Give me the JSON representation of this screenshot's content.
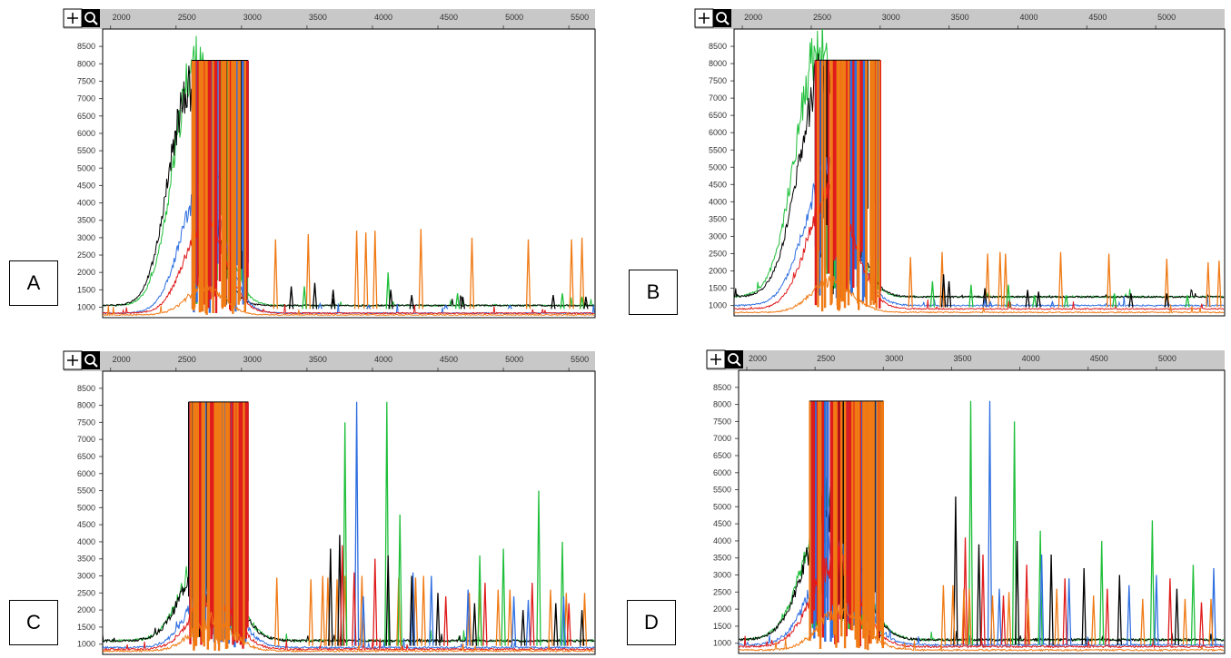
{
  "colors": {
    "black": "#000000",
    "green": "#1fbf3a",
    "blue": "#2f6fe0",
    "red": "#e01b1b",
    "orange": "#f07a14",
    "ruler_bg": "#c8c8c8",
    "axis_text": "#333333"
  },
  "toolbar": {
    "zoom_in_icon": "plus-icon",
    "magnifier_icon": "magnifier-icon"
  },
  "chart_data": [
    {
      "type": "line",
      "panel_label": "A",
      "x_ticks": [
        2000,
        2500,
        3000,
        3500,
        4000,
        4500,
        5000,
        5500
      ],
      "xlim": [
        1940,
        5700
      ],
      "y_ticks": [
        1000,
        1500,
        2000,
        2500,
        3000,
        3500,
        4000,
        4500,
        5000,
        5500,
        6000,
        6500,
        7000,
        7500,
        8000,
        8500
      ],
      "ylim": [
        700,
        9000
      ],
      "series": [
        {
          "color": "green",
          "baseline": 1050,
          "hump": 7000,
          "hump_center": 2650,
          "hump_width": 230,
          "noise": 0.02,
          "seed": 11
        },
        {
          "color": "black",
          "baseline": 1050,
          "hump": 6200,
          "hump_center": 2600,
          "hump_width": 220,
          "noise": 0.02,
          "seed": 12
        },
        {
          "color": "blue",
          "baseline": 830,
          "hump": 3600,
          "hump_center": 2700,
          "hump_width": 230,
          "noise": 0.02,
          "seed": 13
        },
        {
          "color": "red",
          "baseline": 830,
          "hump": 2600,
          "hump_center": 2720,
          "hump_width": 220,
          "noise": 0.02,
          "seed": 14
        },
        {
          "color": "orange",
          "baseline": 780,
          "hump": 800,
          "hump_center": 2720,
          "hump_width": 200,
          "noise": 0.02,
          "seed": 15
        }
      ],
      "saturation_band": [
        2620,
        3050
      ],
      "saturation_level": 8100,
      "peaks": [
        {
          "color": "orange",
          "x": [
            3260,
            3510,
            3880,
            3950,
            4020,
            4370,
            4760,
            5190,
            5520,
            5600
          ],
          "y": [
            2950,
            3100,
            3200,
            3150,
            3200,
            3250,
            3000,
            2950,
            2950,
            3000
          ]
        },
        {
          "color": "green",
          "x": [
            3480,
            4120,
            4650,
            5450,
            5600
          ],
          "y": [
            1600,
            2000,
            1400,
            1400,
            1300
          ]
        },
        {
          "color": "black",
          "x": [
            3380,
            3560,
            3700,
            4140,
            4300,
            4690,
            5380,
            5630
          ],
          "y": [
            1600,
            1700,
            1500,
            1500,
            1350,
            1300,
            1350,
            1300
          ]
        },
        {
          "color": "blue",
          "x": [
            3600,
            3970,
            4560,
            5050
          ],
          "y": [
            1100,
            1050,
            1050,
            1050
          ]
        }
      ]
    },
    {
      "type": "line",
      "panel_label": "B",
      "x_ticks": [
        2000,
        2500,
        3000,
        3500,
        4000,
        4500,
        5000
      ],
      "xlim": [
        1940,
        5500
      ],
      "y_ticks": [
        1000,
        1500,
        2000,
        2500,
        3000,
        3500,
        4000,
        4500,
        5000,
        5500,
        6000,
        6500,
        7000,
        7500,
        8000,
        8500
      ],
      "ylim": [
        700,
        9000
      ],
      "series": [
        {
          "color": "green",
          "baseline": 1250,
          "hump": 7200,
          "hump_center": 2560,
          "hump_width": 240,
          "noise": 0.02,
          "seed": 21
        },
        {
          "color": "black",
          "baseline": 1250,
          "hump": 6400,
          "hump_center": 2580,
          "hump_width": 240,
          "noise": 0.02,
          "seed": 22
        },
        {
          "color": "blue",
          "baseline": 1000,
          "hump": 3900,
          "hump_center": 2620,
          "hump_width": 240,
          "noise": 0.02,
          "seed": 23
        },
        {
          "color": "red",
          "baseline": 900,
          "hump": 3400,
          "hump_center": 2640,
          "hump_width": 230,
          "noise": 0.02,
          "seed": 24
        },
        {
          "color": "orange",
          "baseline": 800,
          "hump": 900,
          "hump_center": 2650,
          "hump_width": 210,
          "noise": 0.02,
          "seed": 25
        }
      ],
      "saturation_band": [
        2530,
        3000
      ],
      "saturation_level": 8100,
      "peaks": [
        {
          "color": "orange",
          "x": [
            3220,
            3450,
            3780,
            3870,
            3910,
            4310,
            4660,
            5080,
            5380,
            5460
          ],
          "y": [
            2400,
            2550,
            2500,
            2550,
            2500,
            2550,
            2500,
            2350,
            2250,
            2300
          ]
        },
        {
          "color": "green",
          "x": [
            3380,
            3660,
            3930,
            4120,
            4350,
            4700,
            5230
          ],
          "y": [
            1700,
            1600,
            1600,
            1300,
            1300,
            1350,
            1300
          ]
        },
        {
          "color": "black",
          "x": [
            3460,
            3500,
            3760,
            4070,
            4150,
            4820,
            5080
          ],
          "y": [
            1900,
            1700,
            1500,
            1450,
            1400,
            1350,
            1350
          ]
        },
        {
          "color": "blue",
          "x": [
            3760,
            3800,
            4250
          ],
          "y": [
            1150,
            1100,
            1100
          ]
        }
      ]
    },
    {
      "type": "line",
      "panel_label": "C",
      "x_ticks": [
        2000,
        2500,
        3000,
        3500,
        4000,
        4500,
        5000,
        5500
      ],
      "xlim": [
        1940,
        5700
      ],
      "y_ticks": [
        1000,
        1500,
        2000,
        2500,
        3000,
        3500,
        4000,
        4500,
        5000,
        5500,
        6000,
        6500,
        7000,
        7500,
        8000,
        8500
      ],
      "ylim": [
        700,
        9000
      ],
      "series": [
        {
          "color": "green",
          "baseline": 1100,
          "hump": 3000,
          "hump_center": 2750,
          "hump_width": 250,
          "noise": 0.03,
          "seed": 31
        },
        {
          "color": "black",
          "baseline": 1100,
          "hump": 2800,
          "hump_center": 2750,
          "hump_width": 250,
          "noise": 0.03,
          "seed": 32
        },
        {
          "color": "blue",
          "baseline": 900,
          "hump": 2000,
          "hump_center": 2780,
          "hump_width": 240,
          "noise": 0.03,
          "seed": 33
        },
        {
          "color": "red",
          "baseline": 850,
          "hump": 1600,
          "hump_center": 2780,
          "hump_width": 230,
          "noise": 0.03,
          "seed": 34
        },
        {
          "color": "orange",
          "baseline": 800,
          "hump": 900,
          "hump_center": 2780,
          "hump_width": 220,
          "noise": 0.03,
          "seed": 35
        }
      ],
      "saturation_band": [
        2600,
        3050
      ],
      "saturation_level": 8100,
      "peaks": [
        {
          "color": "orange",
          "x": [
            3270,
            3530,
            3620,
            3660,
            3730,
            3790,
            3920,
            4200,
            4330,
            4390,
            4740,
            4820,
            4960,
            5050,
            5360,
            5480,
            5620
          ],
          "y": [
            2950,
            2900,
            3000,
            2950,
            2900,
            3000,
            3000,
            2950,
            2950,
            3000,
            2500,
            2600,
            2600,
            2600,
            2600,
            2500,
            2500
          ]
        },
        {
          "color": "green",
          "x": [
            3790,
            4110,
            4210,
            4820,
            5000,
            5270,
            5450
          ],
          "y": [
            7500,
            8100,
            4800,
            3600,
            3800,
            5500,
            4000
          ]
        },
        {
          "color": "blue",
          "x": [
            3880,
            3930,
            4310,
            4450,
            4730,
            5080,
            5190,
            5460
          ],
          "y": [
            8100,
            2400,
            3100,
            3000,
            2600,
            2400,
            2300,
            2400
          ]
        },
        {
          "color": "black",
          "x": [
            3680,
            3750,
            4120,
            4300,
            4500,
            4780,
            5150,
            5400,
            5600
          ],
          "y": [
            3800,
            4200,
            3600,
            3000,
            2500,
            2200,
            2000,
            2200,
            2000
          ]
        },
        {
          "color": "red",
          "x": [
            3770,
            3860,
            4020,
            4560,
            4860,
            5220,
            5500
          ],
          "y": [
            3900,
            3100,
            3500,
            2400,
            2800,
            2800,
            2200
          ]
        }
      ]
    },
    {
      "type": "line",
      "panel_label": "D",
      "x_ticks": [
        2000,
        2500,
        3000,
        3500,
        4000,
        4500,
        5000
      ],
      "xlim": [
        1940,
        5500
      ],
      "y_ticks": [
        1000,
        1500,
        2000,
        2500,
        3000,
        3500,
        4000,
        4500,
        5000,
        5500,
        6000,
        6500,
        7000,
        7500,
        8000,
        8500
      ],
      "ylim": [
        700,
        9000
      ],
      "series": [
        {
          "color": "green",
          "baseline": 1100,
          "hump": 4300,
          "hump_center": 2620,
          "hump_width": 260,
          "noise": 0.03,
          "seed": 41
        },
        {
          "color": "black",
          "baseline": 1100,
          "hump": 3900,
          "hump_center": 2620,
          "hump_width": 260,
          "noise": 0.03,
          "seed": 42
        },
        {
          "color": "blue",
          "baseline": 950,
          "hump": 2800,
          "hump_center": 2650,
          "hump_width": 250,
          "noise": 0.03,
          "seed": 43
        },
        {
          "color": "red",
          "baseline": 900,
          "hump": 2500,
          "hump_center": 2650,
          "hump_width": 240,
          "noise": 0.03,
          "seed": 44
        },
        {
          "color": "orange",
          "baseline": 800,
          "hump": 1200,
          "hump_center": 2700,
          "hump_width": 230,
          "noise": 0.03,
          "seed": 45
        }
      ],
      "saturation_band": [
        2460,
        3000
      ],
      "saturation_level": 8100,
      "peaks": [
        {
          "color": "green",
          "x": [
            3640,
            3960,
            4150,
            4600,
            4970,
            5270
          ],
          "y": [
            8100,
            7500,
            4300,
            4000,
            4600,
            3300
          ]
        },
        {
          "color": "blue",
          "x": [
            3780,
            3850,
            4160,
            4360,
            4800,
            5000,
            5420
          ],
          "y": [
            8100,
            2600,
            3600,
            2900,
            2700,
            3000,
            3200
          ]
        },
        {
          "color": "black",
          "x": [
            3530,
            3700,
            3980,
            4230,
            4470,
            4730,
            5150
          ],
          "y": [
            5300,
            3900,
            4000,
            3600,
            3200,
            3000,
            2600
          ]
        },
        {
          "color": "red",
          "x": [
            3600,
            3730,
            3880,
            4050,
            4330,
            4640,
            5100,
            5330
          ],
          "y": [
            4100,
            3600,
            2400,
            3300,
            2900,
            2600,
            2900,
            2200
          ]
        },
        {
          "color": "orange",
          "x": [
            3440,
            3510,
            3590,
            3630,
            3800,
            3920,
            4060,
            4270,
            4540,
            4900,
            5210,
            5400
          ],
          "y": [
            2700,
            2700,
            2600,
            2600,
            2400,
            2500,
            2300,
            2600,
            2400,
            2300,
            2300,
            2300
          ]
        }
      ]
    }
  ]
}
